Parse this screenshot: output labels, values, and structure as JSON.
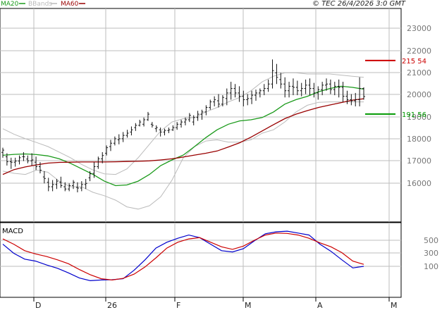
{
  "header": {
    "legend": [
      {
        "label": "MA20",
        "color": "#1a9a1a"
      },
      {
        "label": "BBands",
        "color": "#bbbbbb"
      },
      {
        "label": "MA60",
        "color": "#990000"
      }
    ],
    "copyright": "© TEC 26/4/2026 3:0 GMT"
  },
  "chart_data": [
    {
      "type": "bar",
      "subtype": "ohlc",
      "title": "",
      "ylim": [
        15000,
        23500
      ],
      "y_ticks": [
        "23000",
        "22000",
        "21000",
        "20000",
        "19000",
        "18000",
        "17000",
        "16000"
      ],
      "x_labels": [
        "D",
        "26",
        "F",
        "M",
        "A",
        "M"
      ],
      "grid": true,
      "series": [
        {
          "name": "MA20",
          "color": "#1a9a1a",
          "values": [
            17310,
            17350,
            17370,
            17340,
            17280,
            17150,
            16950,
            16700,
            16450,
            16150,
            15950,
            15980,
            16150,
            16450,
            16850,
            17100,
            17320,
            17700,
            18100,
            18450,
            18700,
            18850,
            18900,
            19000,
            19250,
            19600,
            19800,
            19950,
            20150,
            20300,
            20400,
            20350,
            20270
          ]
        },
        {
          "name": "MA60",
          "color": "#990000",
          "values": [
            16450,
            16670,
            16790,
            16880,
            16960,
            16990,
            17000,
            17010,
            17010,
            17010,
            17020,
            17030,
            17040,
            17060,
            17100,
            17150,
            17230,
            17320,
            17400,
            17500,
            17680,
            17870,
            18120,
            18400,
            18680,
            18950,
            19150,
            19310,
            19450,
            19560,
            19670,
            19780,
            19840
          ]
        },
        {
          "name": "BBand upper",
          "color": "#bbbbbb",
          "values": [
            18500,
            18250,
            18050,
            17880,
            17700,
            17450,
            17200,
            16900,
            16650,
            16480,
            16450,
            16700,
            17200,
            17800,
            18400,
            18800,
            18950,
            19000,
            19250,
            19450,
            19700,
            19900,
            20200,
            20600,
            20850,
            21000,
            21000,
            20950,
            20950,
            20950,
            20900,
            20850,
            20800
          ]
        },
        {
          "name": "BBand lower",
          "color": "#bbbbbb",
          "values": [
            16600,
            16500,
            16450,
            16650,
            16550,
            16150,
            15900,
            15900,
            15650,
            15500,
            15300,
            15000,
            14900,
            15050,
            15450,
            16200,
            17200,
            17700,
            17950,
            18000,
            17900,
            17900,
            18000,
            18300,
            18450,
            18800,
            19250,
            19550,
            19680,
            19700,
            19700,
            19700,
            19700
          ]
        }
      ],
      "price_bars": [
        [
          17440,
          17650,
          17200,
          17540
        ],
        [
          17240,
          17400,
          16850,
          17020
        ],
        [
          17020,
          17200,
          16700,
          17000
        ],
        [
          17000,
          17200,
          16800,
          17050
        ],
        [
          17050,
          17300,
          16900,
          17200
        ],
        [
          17250,
          17450,
          17050,
          17240
        ],
        [
          17140,
          17300,
          16950,
          17060
        ],
        [
          17060,
          17400,
          16850,
          17100
        ],
        [
          17000,
          17250,
          16650,
          16800
        ],
        [
          16800,
          17000,
          16500,
          16640
        ],
        [
          16340,
          16600,
          16050,
          16270
        ],
        [
          16100,
          16300,
          15700,
          15900
        ],
        [
          15900,
          16200,
          15700,
          16000
        ],
        [
          16000,
          16250,
          15800,
          16150
        ],
        [
          16100,
          16350,
          15850,
          15950
        ],
        [
          15900,
          16100,
          15700,
          15800
        ],
        [
          15800,
          16050,
          15700,
          15950
        ],
        [
          15950,
          16200,
          15800,
          16100
        ],
        [
          15870,
          16100,
          15650,
          15840
        ],
        [
          15840,
          16150,
          15700,
          16000
        ],
        [
          16000,
          16250,
          15800,
          16050
        ],
        [
          16300,
          16600,
          16150,
          16480
        ],
        [
          16500,
          17000,
          16300,
          16800
        ],
        [
          16800,
          17250,
          16700,
          17150
        ],
        [
          17150,
          17450,
          16950,
          17300
        ],
        [
          17400,
          17750,
          17300,
          17650
        ],
        [
          17700,
          18000,
          17500,
          17850
        ],
        [
          17850,
          18150,
          17750,
          18050
        ],
        [
          18000,
          18250,
          17800,
          18050
        ],
        [
          18050,
          18350,
          17900,
          18200
        ],
        [
          18200,
          18450,
          18100,
          18300
        ],
        [
          18350,
          18600,
          18200,
          18450
        ],
        [
          18550,
          18750,
          18400,
          18650
        ],
        [
          18650,
          18900,
          18600,
          18800
        ],
        [
          18700,
          19000,
          18600,
          18900
        ],
        [
          18900,
          19250,
          18850,
          19150
        ],
        [
          18700,
          18800,
          18550,
          18650
        ],
        [
          18500,
          18650,
          18350,
          18550
        ],
        [
          18450,
          18550,
          18150,
          18350
        ],
        [
          18350,
          18500,
          18200,
          18420
        ],
        [
          18420,
          18550,
          18300,
          18450
        ],
        [
          18450,
          18650,
          18400,
          18550
        ],
        [
          18550,
          18800,
          18450,
          18700
        ],
        [
          18700,
          18900,
          18550,
          18800
        ],
        [
          18800,
          19000,
          18650,
          18900
        ],
        [
          18900,
          19200,
          18800,
          19100
        ],
        [
          18800,
          19100,
          18650,
          19000
        ],
        [
          19000,
          19300,
          18850,
          19150
        ],
        [
          19150,
          19350,
          18900,
          19250
        ],
        [
          19250,
          19550,
          19100,
          19450
        ],
        [
          19450,
          19800,
          19350,
          19700
        ],
        [
          19700,
          19950,
          19500,
          19800
        ],
        [
          19750,
          20050,
          19450,
          19600
        ],
        [
          19600,
          20000,
          19500,
          19900
        ],
        [
          19850,
          20300,
          19550,
          20100
        ],
        [
          20100,
          20600,
          19800,
          20300
        ],
        [
          20300,
          20500,
          19900,
          20100
        ],
        [
          20100,
          20400,
          19700,
          19950
        ],
        [
          19950,
          20200,
          19500,
          19800
        ],
        [
          19800,
          20050,
          19550,
          19850
        ],
        [
          19850,
          20200,
          19600,
          20000
        ],
        [
          20000,
          20250,
          19750,
          20100
        ],
        [
          20100,
          20300,
          19900,
          20200
        ],
        [
          20200,
          20500,
          20000,
          20300
        ],
        [
          20300,
          20700,
          20150,
          20500
        ],
        [
          20500,
          21600,
          20300,
          21100
        ],
        [
          21000,
          21400,
          20500,
          20800
        ],
        [
          20700,
          21000,
          20300,
          20500
        ],
        [
          20500,
          20800,
          19900,
          20200
        ],
        [
          20200,
          20600,
          19900,
          20400
        ],
        [
          20400,
          20750,
          20000,
          20350
        ],
        [
          20350,
          20650,
          20000,
          20200
        ],
        [
          20200,
          20550,
          19950,
          20300
        ],
        [
          20300,
          20700,
          20050,
          20450
        ],
        [
          20450,
          20750,
          20000,
          20300
        ],
        [
          20300,
          20550,
          19900,
          20100
        ],
        [
          20100,
          20400,
          19800,
          20250
        ],
        [
          20250,
          20600,
          20000,
          20450
        ],
        [
          20450,
          20750,
          20200,
          20500
        ],
        [
          20500,
          20700,
          20050,
          20250
        ],
        [
          20250,
          20600,
          20000,
          20400
        ],
        [
          20400,
          20700,
          19900,
          20350
        ],
        [
          20350,
          20600,
          19700,
          19950
        ],
        [
          19950,
          20200,
          19600,
          19800
        ],
        [
          19800,
          20050,
          19550,
          19750
        ],
        [
          19750,
          20100,
          19500,
          19800
        ],
        [
          19800,
          20800,
          19500,
          20300
        ],
        [
          20300,
          20350,
          19800,
          19940
        ]
      ],
      "annotations": [
        {
          "label": "215 54",
          "value": 21554,
          "color": "#cc0000"
        },
        {
          "label": "191 56",
          "value": 19156,
          "color": "#009900"
        }
      ]
    },
    {
      "type": "line",
      "title": "MACD",
      "ylim": [
        -150,
        700
      ],
      "y_ticks": [
        "500",
        "300",
        "100"
      ],
      "series": [
        {
          "name": "",
          "color": "#0000cc",
          "values": [
            440,
            300,
            210,
            180,
            120,
            70,
            0,
            -80,
            -120,
            -110,
            -105,
            -90,
            40,
            200,
            380,
            470,
            530,
            580,
            540,
            440,
            340,
            320,
            370,
            490,
            600,
            630,
            640,
            610,
            580,
            440,
            330,
            200,
            75,
            100
          ]
        },
        {
          "name": "",
          "color": "#cc0000",
          "values": [
            520,
            440,
            340,
            290,
            250,
            200,
            140,
            50,
            -30,
            -90,
            -110,
            -85,
            -20,
            90,
            230,
            380,
            470,
            520,
            540,
            470,
            400,
            360,
            410,
            500,
            580,
            610,
            605,
            580,
            530,
            460,
            400,
            310,
            180,
            130
          ]
        }
      ]
    }
  ]
}
